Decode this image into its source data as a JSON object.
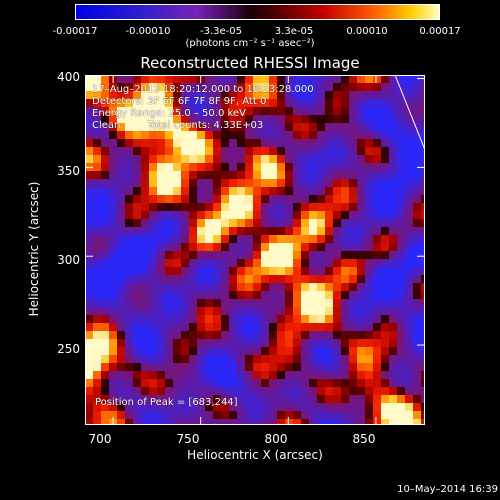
{
  "colorbar": {
    "ticks": [
      "-0.00017",
      "-0.00010",
      "-3.3e-05",
      "3.3e-05",
      "0.00010",
      "0.00017"
    ],
    "tick_values": [
      -0.00017,
      -0.0001,
      -3.3e-05,
      3.3e-05,
      0.0001,
      0.00017
    ],
    "units": "(photons cm⁻² s⁻¹ asec⁻²)",
    "min": -0.00017,
    "max": 0.00017
  },
  "chart_data": {
    "type": "heatmap",
    "title": "Reconstructed RHESSI Image",
    "xlabel": "Heliocentric X (arcsec)",
    "ylabel": "Heliocentric Y (arcsec)",
    "xlim": [
      684,
      878
    ],
    "ylim": [
      205,
      402
    ],
    "xticks": [
      700,
      750,
      800,
      850
    ],
    "yticks": [
      250,
      300,
      350,
      400
    ],
    "peak": [
      683,
      244
    ],
    "annotations": {
      "time": "17–Aug–2012 18:20:12.000 to 18:23:28.000",
      "detectors": "Detectors: 3F 5F 6F 7F 8F 9F, Att 0",
      "energy": "Energy Range: 25.0 – 50.0 keV",
      "method": "Clean",
      "counts": "Total counts: 4.33E+03",
      "peak_label": "Position of Peak = [683,244]"
    }
  },
  "footer": {
    "date": "10–May–2014 16:39"
  }
}
